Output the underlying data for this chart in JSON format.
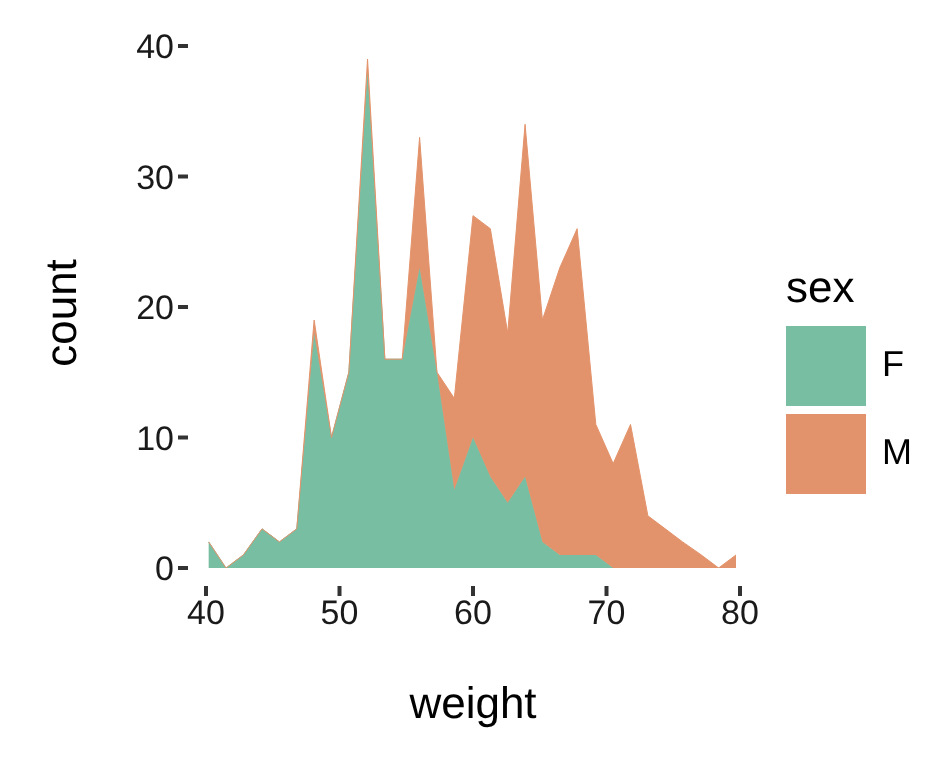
{
  "chart_data": {
    "type": "area",
    "stacked": true,
    "xlabel": "weight",
    "ylabel": "count",
    "legend_title": "sex",
    "legend": "right",
    "x": [
      40.2,
      41.5,
      42.8,
      44.2,
      45.5,
      46.8,
      48.1,
      49.4,
      50.7,
      52.1,
      53.4,
      54.7,
      56.0,
      57.3,
      58.6,
      60.0,
      61.3,
      62.6,
      63.9,
      65.2,
      66.5,
      67.8,
      69.2,
      70.5,
      71.8,
      73.1,
      74.4,
      75.7,
      77.1,
      78.4,
      79.7
    ],
    "series": [
      {
        "name": "F",
        "color": "#78bea2",
        "values": [
          2,
          0,
          1,
          3,
          2,
          3,
          18,
          10,
          15,
          38,
          16,
          16,
          23,
          15,
          6,
          10,
          7,
          5,
          7,
          2,
          1,
          1,
          1,
          0,
          0,
          0,
          0,
          0,
          0,
          0,
          0
        ]
      },
      {
        "name": "M",
        "color": "#e3936b",
        "values": [
          0,
          0,
          0,
          0,
          0,
          0,
          1,
          0,
          0,
          1,
          0,
          0,
          10,
          0,
          7,
          17,
          19,
          13,
          27,
          17,
          22,
          25,
          10,
          8,
          11,
          4,
          3,
          2,
          1,
          0,
          1
        ]
      }
    ],
    "xlim": [
      40,
      80
    ],
    "xticks": [
      40,
      50,
      60,
      70,
      80
    ],
    "ylim": [
      0,
      40
    ],
    "yticks": [
      0,
      10,
      20,
      30,
      40
    ],
    "grid": false
  }
}
